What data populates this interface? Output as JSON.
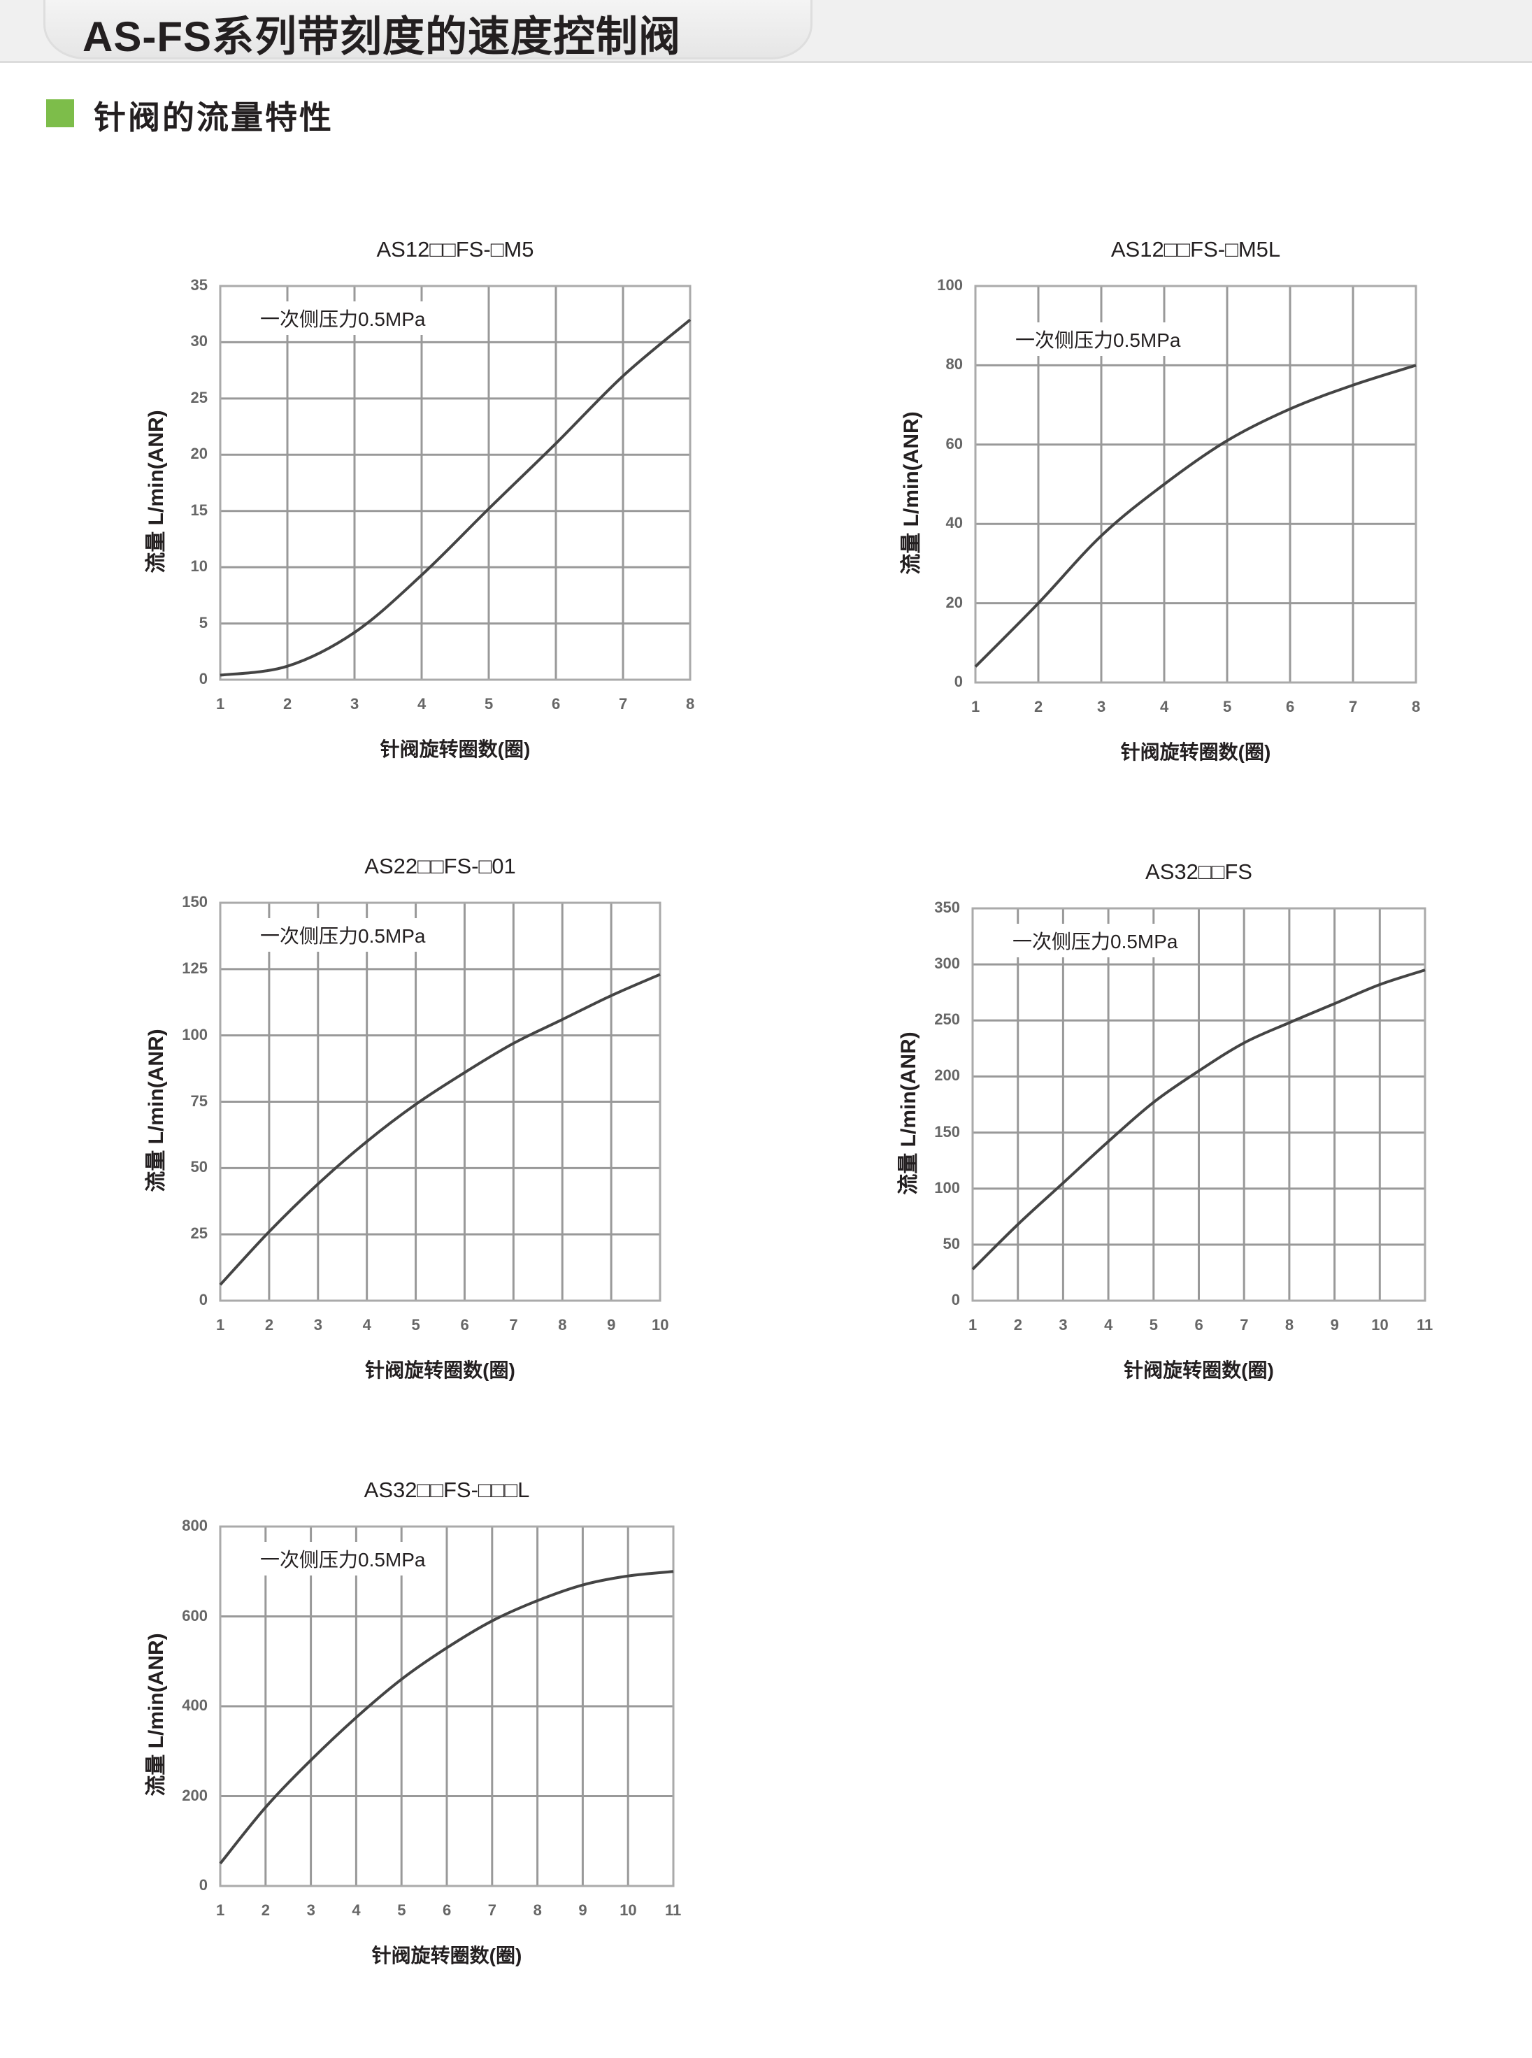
{
  "header": {
    "title": "AS-FS系列带刻度的速度控制阀"
  },
  "section": {
    "title": "针阀的流量特性"
  },
  "colors": {
    "accent": "#7dbd4a",
    "grid": "#999999",
    "curve": "#444444"
  },
  "chart_data": [
    {
      "type": "line",
      "title": "AS12□□FS-□M5",
      "xlabel": "针阀旋转圈数(圈)",
      "ylabel": "流量 L/min(ANR)",
      "annotation": "一次侧压力0.5MPa",
      "x": [
        1,
        2,
        3,
        4,
        5,
        6,
        7,
        8
      ],
      "xticks": [
        "1",
        "2",
        "3",
        "4",
        "5",
        "6",
        "7",
        "8"
      ],
      "yticks": [
        "0",
        "5",
        "10",
        "15",
        "20",
        "25",
        "30",
        "35"
      ],
      "ylim": [
        0,
        35
      ],
      "xlim": [
        1,
        8
      ],
      "grid": true,
      "values": [
        0.4,
        1.2,
        4.2,
        9.3,
        15.2,
        21,
        27,
        32
      ]
    },
    {
      "type": "line",
      "title": "AS12□□FS-□M5L",
      "xlabel": "针阀旋转圈数(圈)",
      "ylabel": "流量 L/min(ANR)",
      "annotation": "一次侧压力0.5MPa",
      "x": [
        1,
        2,
        3,
        4,
        5,
        6,
        7,
        8
      ],
      "xticks": [
        "1",
        "2",
        "3",
        "4",
        "5",
        "6",
        "7",
        "8"
      ],
      "yticks": [
        "0",
        "20",
        "40",
        "60",
        "80",
        "100"
      ],
      "ylim": [
        0,
        100
      ],
      "xlim": [
        1,
        8
      ],
      "grid": true,
      "values": [
        4,
        20,
        37,
        50,
        61,
        69,
        75,
        80
      ]
    },
    {
      "type": "line",
      "title": "AS22□□FS-□01",
      "xlabel": "针阀旋转圈数(圈)",
      "ylabel": "流量 L/min(ANR)",
      "annotation": "一次侧压力0.5MPa",
      "x": [
        1,
        2,
        3,
        4,
        5,
        6,
        7,
        8,
        9,
        10
      ],
      "xticks": [
        "1",
        "2",
        "3",
        "4",
        "5",
        "6",
        "7",
        "8",
        "9",
        "10"
      ],
      "yticks": [
        "0",
        "25",
        "50",
        "75",
        "100",
        "125",
        "150"
      ],
      "ylim": [
        0,
        150
      ],
      "xlim": [
        1,
        10
      ],
      "grid": true,
      "values": [
        6,
        26,
        44,
        60,
        74,
        86,
        97,
        106,
        115,
        123
      ]
    },
    {
      "type": "line",
      "title": "AS32□□FS",
      "xlabel": "针阀旋转圈数(圈)",
      "ylabel": "流量 L/min(ANR)",
      "annotation": "一次侧压力0.5MPa",
      "x": [
        1,
        2,
        3,
        4,
        5,
        6,
        7,
        8,
        9,
        10,
        11
      ],
      "xticks": [
        "1",
        "2",
        "3",
        "4",
        "5",
        "6",
        "7",
        "8",
        "9",
        "10",
        "11"
      ],
      "yticks": [
        "0",
        "50",
        "100",
        "150",
        "200",
        "250",
        "300",
        "350"
      ],
      "ylim": [
        0,
        350
      ],
      "xlim": [
        1,
        11
      ],
      "grid": true,
      "values": [
        28,
        68,
        105,
        142,
        177,
        205,
        230,
        248,
        265,
        282,
        295
      ]
    },
    {
      "type": "line",
      "title": "AS32□□FS-□□□L",
      "xlabel": "针阀旋转圈数(圈)",
      "ylabel": "流量 L/min(ANR)",
      "annotation": "一次侧压力0.5MPa",
      "x": [
        1,
        2,
        3,
        4,
        5,
        6,
        7,
        8,
        9,
        10,
        11
      ],
      "xticks": [
        "1",
        "2",
        "3",
        "4",
        "5",
        "6",
        "7",
        "8",
        "9",
        "10",
        "11"
      ],
      "yticks": [
        "0",
        "200",
        "400",
        "600",
        "800"
      ],
      "ylim": [
        0,
        800
      ],
      "xlim": [
        1,
        11
      ],
      "grid": true,
      "values": [
        50,
        175,
        280,
        375,
        460,
        530,
        590,
        635,
        670,
        690,
        700
      ]
    }
  ]
}
